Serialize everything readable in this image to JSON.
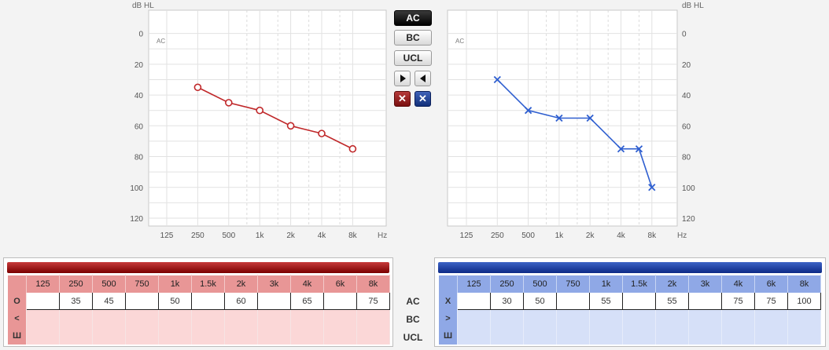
{
  "buttons": {
    "ac": "AC",
    "bc": "BC",
    "ucl": "UCL"
  },
  "chart_data": [
    {
      "type": "line",
      "ear": "right",
      "color": "#c0282a",
      "marker": "circle",
      "tag": "AC",
      "ylabel": "dB HL",
      "xlabel": "Hz",
      "x_ticks": [
        "125",
        "250",
        "500",
        "1k",
        "2k",
        "4k",
        "8k"
      ],
      "y_ticks": [
        "0",
        "20",
        "40",
        "60",
        "80",
        "100",
        "120"
      ],
      "ylim": [
        -10,
        120
      ],
      "y_inverted": true,
      "points": [
        {
          "x": "250",
          "y": 35
        },
        {
          "x": "500",
          "y": 45
        },
        {
          "x": "1k",
          "y": 50
        },
        {
          "x": "2k",
          "y": 60
        },
        {
          "x": "4k",
          "y": 65
        },
        {
          "x": "8k",
          "y": 75
        }
      ]
    },
    {
      "type": "line",
      "ear": "left",
      "color": "#2f5fd0",
      "marker": "cross",
      "tag": "AC",
      "ylabel": "dB HL",
      "xlabel": "Hz",
      "x_ticks": [
        "125",
        "250",
        "500",
        "1k",
        "2k",
        "4k",
        "8k"
      ],
      "y_ticks": [
        "0",
        "20",
        "40",
        "60",
        "80",
        "100",
        "120"
      ],
      "ylim": [
        -10,
        120
      ],
      "y_inverted": true,
      "points": [
        {
          "x": "250",
          "y": 30
        },
        {
          "x": "500",
          "y": 50
        },
        {
          "x": "1k",
          "y": 55
        },
        {
          "x": "2k",
          "y": 55
        },
        {
          "x": "4k",
          "y": 75
        },
        {
          "x": "6k",
          "y": 75
        },
        {
          "x": "8k",
          "y": 100
        }
      ]
    }
  ],
  "tables": {
    "freqs": [
      "125",
      "250",
      "500",
      "750",
      "1k",
      "1.5k",
      "2k",
      "3k",
      "4k",
      "6k",
      "8k"
    ],
    "row_labels": [
      "AC",
      "BC",
      "UCL"
    ],
    "right": {
      "symbols": [
        "O",
        "<",
        "Ш"
      ],
      "ac": [
        "",
        "35",
        "45",
        "",
        "50",
        "",
        "60",
        "",
        "65",
        "",
        "75"
      ]
    },
    "left": {
      "symbols": [
        "X",
        ">",
        "Ш"
      ],
      "ac": [
        "",
        "30",
        "50",
        "",
        "55",
        "",
        "55",
        "",
        "75",
        "75",
        "100"
      ]
    }
  }
}
